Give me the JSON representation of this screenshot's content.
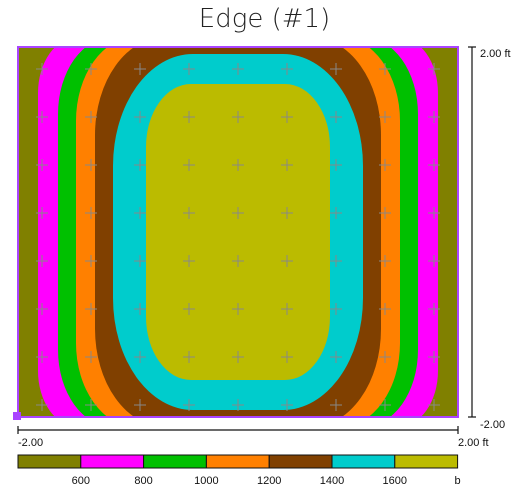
{
  "chart_data": {
    "type": "heatmap",
    "title": "Edge (#1)",
    "x_range": [
      -2.0,
      2.0
    ],
    "y_range": [
      -2.0,
      2.0
    ],
    "x_tick_labels": [
      "-2.00",
      "2.00 ft"
    ],
    "y_tick_labels": [
      "2.00 ft",
      "-2.00"
    ],
    "colorbar": {
      "tick_labels": [
        "600",
        "800",
        "1000",
        "1200",
        "1400",
        "1600",
        "b"
      ],
      "bands": [
        {
          "color": "#808000"
        },
        {
          "color": "#ff00ff"
        },
        {
          "color": "#00c000"
        },
        {
          "color": "#ff8000"
        },
        {
          "color": "#804000"
        },
        {
          "color": "#00cccc"
        },
        {
          "color": "#bbbb00"
        }
      ]
    },
    "contour_band_colors_outer_to_inner": [
      "#808000",
      "#ff00ff",
      "#00c000",
      "#ff8000",
      "#804000",
      "#00cccc",
      "#bbbb00"
    ],
    "border_color": "#aa44ff",
    "grid_marker_color": "#888888"
  }
}
